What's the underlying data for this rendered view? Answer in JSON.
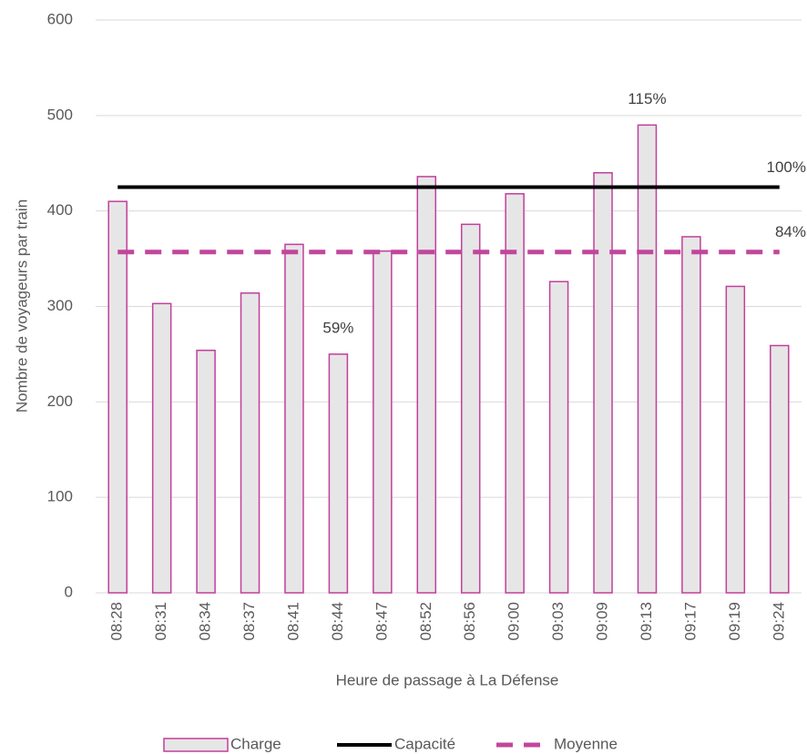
{
  "chart_data": {
    "type": "bar",
    "categories": [
      "08:28",
      "08:31",
      "08:34",
      "08:37",
      "08:41",
      "08:44",
      "08:47",
      "08:52",
      "08:56",
      "09:00",
      "09:03",
      "09:09",
      "09:13",
      "09:17",
      "09:19",
      "09:24"
    ],
    "series": [
      {
        "name": "Charge",
        "type": "bar",
        "color": "#c13f9c",
        "fill": "#e7e6e6",
        "values": [
          410,
          303,
          254,
          314,
          365,
          250,
          358,
          436,
          386,
          418,
          326,
          440,
          490,
          373,
          321,
          259
        ]
      },
      {
        "name": "Capacité",
        "type": "line",
        "color": "#000000",
        "dash": false,
        "values": [
          425,
          425,
          425,
          425,
          425,
          425,
          425,
          425,
          425,
          425,
          425,
          425,
          425,
          425,
          425,
          425
        ]
      },
      {
        "name": "Moyenne",
        "type": "line",
        "color": "#c0479c",
        "dash": true,
        "values": [
          357,
          357,
          357,
          357,
          357,
          357,
          357,
          357,
          357,
          357,
          357,
          357,
          357,
          357,
          357,
          357
        ]
      }
    ],
    "annotations": [
      {
        "text": "115%",
        "series": "Charge",
        "category": "09:13"
      },
      {
        "text": "59%",
        "series": "Charge",
        "category": "08:44"
      },
      {
        "text": "100%",
        "series": "Capacité",
        "category": "09:24"
      },
      {
        "text": "84%",
        "series": "Moyenne",
        "category": "09:24"
      }
    ],
    "xlabel": "Heure de passage à La Défense",
    "ylabel": "Nombre de voyageurs par train",
    "ylim": [
      0,
      600
    ],
    "yticks": [
      0,
      100,
      200,
      300,
      400,
      500,
      600
    ],
    "grid": true,
    "legend": "bottom"
  }
}
